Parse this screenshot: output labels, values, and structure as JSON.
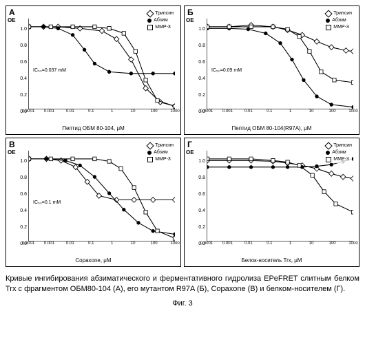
{
  "panels": [
    {
      "id": "A",
      "label": "А",
      "xlabel": "Пептид ОБМ 80-104, μM",
      "ic50": "IC₅₀=0.037 mM",
      "curves": {
        "tryp": [
          [
            0,
            1.0
          ],
          [
            10,
            1.0
          ],
          [
            20,
            1.0
          ],
          [
            35,
            0.98
          ],
          [
            50,
            0.95
          ],
          [
            60,
            0.85
          ],
          [
            70,
            0.6
          ],
          [
            80,
            0.25
          ],
          [
            90,
            0.08
          ],
          [
            100,
            0.03
          ]
        ],
        "abz": [
          [
            0,
            1.0
          ],
          [
            10,
            1.0
          ],
          [
            20,
            0.98
          ],
          [
            30,
            0.9
          ],
          [
            38,
            0.72
          ],
          [
            45,
            0.55
          ],
          [
            55,
            0.45
          ],
          [
            70,
            0.43
          ],
          [
            85,
            0.43
          ],
          [
            100,
            0.43
          ]
        ],
        "mmp": [
          [
            0,
            1.0
          ],
          [
            15,
            1.0
          ],
          [
            30,
            1.0
          ],
          [
            45,
            1.0
          ],
          [
            55,
            0.98
          ],
          [
            65,
            0.92
          ],
          [
            73,
            0.7
          ],
          [
            80,
            0.35
          ],
          [
            88,
            0.1
          ],
          [
            100,
            0.03
          ]
        ]
      }
    },
    {
      "id": "B",
      "label": "Б",
      "xlabel": "Пептид ОБМ 80-104(R97A), μM",
      "ic50": "IC₅₀=0.09 mM",
      "curves": {
        "tryp": [
          [
            0,
            1.0
          ],
          [
            15,
            1.0
          ],
          [
            30,
            1.02
          ],
          [
            45,
            1.0
          ],
          [
            55,
            0.96
          ],
          [
            65,
            0.9
          ],
          [
            75,
            0.82
          ],
          [
            85,
            0.75
          ],
          [
            95,
            0.71
          ],
          [
            100,
            0.7
          ]
        ],
        "abz": [
          [
            0,
            0.98
          ],
          [
            15,
            0.98
          ],
          [
            28,
            0.97
          ],
          [
            40,
            0.92
          ],
          [
            50,
            0.8
          ],
          [
            58,
            0.6
          ],
          [
            66,
            0.35
          ],
          [
            75,
            0.15
          ],
          [
            85,
            0.05
          ],
          [
            100,
            0.02
          ]
        ],
        "mmp": [
          [
            0,
            1.0
          ],
          [
            15,
            1.0
          ],
          [
            30,
            1.0
          ],
          [
            45,
            1.0
          ],
          [
            55,
            0.97
          ],
          [
            63,
            0.88
          ],
          [
            70,
            0.7
          ],
          [
            78,
            0.45
          ],
          [
            87,
            0.35
          ],
          [
            100,
            0.32
          ]
        ]
      }
    },
    {
      "id": "C",
      "label": "В",
      "xlabel": "Copaxone, μM",
      "ic50": "IC₅₀=0.1 mM",
      "curves": {
        "tryp": [
          [
            0,
            1.0
          ],
          [
            12,
            1.0
          ],
          [
            22,
            0.98
          ],
          [
            32,
            0.9
          ],
          [
            40,
            0.72
          ],
          [
            48,
            0.55
          ],
          [
            60,
            0.5
          ],
          [
            72,
            0.5
          ],
          [
            85,
            0.5
          ],
          [
            100,
            0.5
          ]
        ],
        "abz": [
          [
            0,
            1.0
          ],
          [
            12,
            1.0
          ],
          [
            25,
            0.98
          ],
          [
            35,
            0.92
          ],
          [
            45,
            0.78
          ],
          [
            55,
            0.58
          ],
          [
            65,
            0.38
          ],
          [
            75,
            0.22
          ],
          [
            85,
            0.12
          ],
          [
            100,
            0.08
          ]
        ],
        "mmp": [
          [
            0,
            1.0
          ],
          [
            15,
            1.0
          ],
          [
            30,
            1.0
          ],
          [
            45,
            1.0
          ],
          [
            55,
            0.97
          ],
          [
            63,
            0.88
          ],
          [
            72,
            0.65
          ],
          [
            80,
            0.35
          ],
          [
            88,
            0.12
          ],
          [
            100,
            0.03
          ]
        ]
      }
    },
    {
      "id": "D",
      "label": "Г",
      "xlabel": "Белок-носитель Trx, μM",
      "ic50": "",
      "curves": {
        "tryp": [
          [
            0,
            0.98
          ],
          [
            15,
            0.98
          ],
          [
            30,
            0.98
          ],
          [
            45,
            0.97
          ],
          [
            55,
            0.95
          ],
          [
            65,
            0.92
          ],
          [
            75,
            0.88
          ],
          [
            85,
            0.82
          ],
          [
            93,
            0.78
          ],
          [
            100,
            0.76
          ]
        ],
        "abz": [
          [
            0,
            0.9
          ],
          [
            15,
            0.9
          ],
          [
            30,
            0.9
          ],
          [
            45,
            0.9
          ],
          [
            55,
            0.9
          ],
          [
            65,
            0.9
          ],
          [
            75,
            0.91
          ],
          [
            85,
            0.93
          ],
          [
            93,
            0.97
          ],
          [
            100,
            1.0
          ]
        ],
        "mmp": [
          [
            0,
            1.0
          ],
          [
            15,
            1.0
          ],
          [
            30,
            1.0
          ],
          [
            45,
            0.98
          ],
          [
            55,
            0.96
          ],
          [
            63,
            0.92
          ],
          [
            72,
            0.8
          ],
          [
            80,
            0.6
          ],
          [
            88,
            0.45
          ],
          [
            100,
            0.35
          ]
        ]
      }
    }
  ],
  "legend": {
    "tryp": "Трипсин",
    "abz": "Абзим",
    "mmp": "MMP-3"
  },
  "yaxis": {
    "label": "ОЕ",
    "ticks": [
      "0.0",
      "0.2",
      "0.4",
      "0.6",
      "0.8",
      "1.0"
    ]
  },
  "xaxis": {
    "ticks": [
      "0.0001",
      "0.001",
      "0.01",
      "0.1",
      "1",
      "10",
      "100",
      "1000"
    ]
  },
  "caption": "Кривые ингибирования абзиматического и ферментативного гидролиза EPeFRET слитным белком Trx с фрагментом ОБМ80-104 (А), его мутантом R97A (Б), Copaxone (В) и белком-носителем (Г).",
  "figNum": "Фиг. 3",
  "colors": {
    "stroke": "#000000",
    "bg": "#ffffff"
  }
}
